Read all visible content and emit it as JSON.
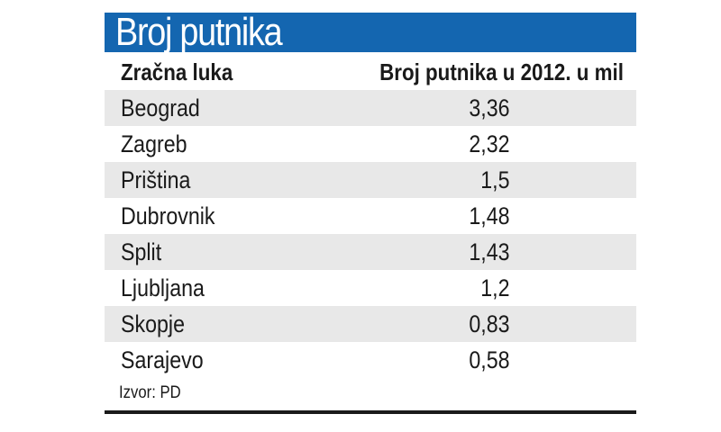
{
  "title": "Broj putnika",
  "colors": {
    "title_bar": "#1466b0",
    "row_shade": "#e8e8e8",
    "text": "#1a1a1a"
  },
  "chart_data": {
    "type": "table",
    "title": "Broj putnika",
    "columns": [
      "Zračna luka",
      "Broj putnika u 2012. u mil"
    ],
    "rows": [
      {
        "name": "Beograd",
        "value": "3,36"
      },
      {
        "name": "Zagreb",
        "value": "2,32"
      },
      {
        "name": "Priština",
        "value": "1,5"
      },
      {
        "name": "Dubrovnik",
        "value": "1,48"
      },
      {
        "name": "Split",
        "value": "1,43"
      },
      {
        "name": "Ljubljana",
        "value": "1,2"
      },
      {
        "name": "Skopje",
        "value": "0,83"
      },
      {
        "name": "Sarajevo",
        "value": "0,58"
      }
    ],
    "values": [
      3.36,
      2.32,
      1.5,
      1.48,
      1.43,
      1.2,
      0.83,
      0.58
    ]
  },
  "source": "Izvor: PD"
}
